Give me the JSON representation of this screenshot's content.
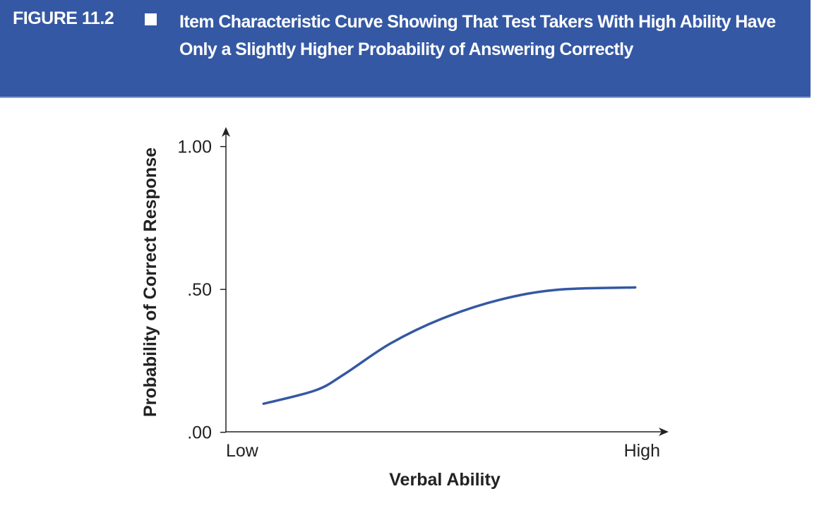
{
  "figure": {
    "label": "FIGURE 11.2",
    "title": "Item Characteristic Curve Showing That Test Takers With High Ability Have Only a Slightly Higher Probability of Answering Correctly"
  },
  "colors": {
    "header": "#3458a3",
    "curve": "#3458a3",
    "axis": "#222222"
  },
  "chart_data": {
    "type": "line",
    "title": "Item Characteristic Curve Showing That Test Takers With High Ability Have Only a Slightly Higher Probability of Answering Correctly",
    "xlabel": "Verbal Ability",
    "ylabel": "Probability of Correct Response",
    "x_tick_labels": [
      "Low",
      "High"
    ],
    "y_ticks": [
      0,
      0.5,
      1.0
    ],
    "y_tick_labels": [
      ".00",
      ".50",
      "1.00"
    ],
    "xlim": [
      0,
      1
    ],
    "ylim": [
      0,
      1
    ],
    "grid": false,
    "legend": "none",
    "series": [
      {
        "x": [
          0.086,
          0.205,
          0.271,
          0.376,
          0.494,
          0.626,
          0.758,
          0.935
        ],
        "y": [
          0.1,
          0.147,
          0.204,
          0.311,
          0.398,
          0.464,
          0.499,
          0.507
        ]
      }
    ]
  }
}
